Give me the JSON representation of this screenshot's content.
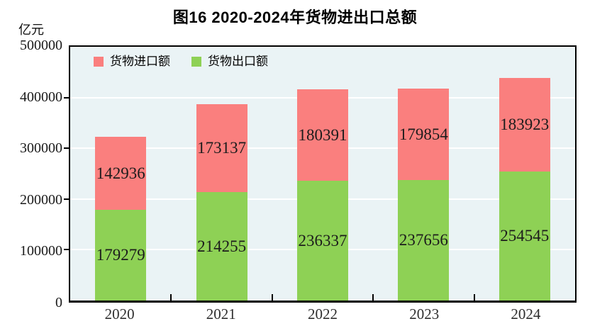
{
  "page": {
    "title": "图16  2020-2024年货物进出口总额",
    "unit_label": "亿元"
  },
  "legend": {
    "items": [
      {
        "label": "货物进口额",
        "color": "#fa7f7e"
      },
      {
        "label": "货物出口额",
        "color": "#8ed155"
      }
    ]
  },
  "chart_data": {
    "type": "bar",
    "stacked": true,
    "title": "图16  2020-2024年货物进出口总额",
    "ylabel": "亿元",
    "categories": [
      "2020",
      "2021",
      "2022",
      "2023",
      "2024"
    ],
    "series": [
      {
        "name": "货物进口额",
        "color": "#fa7f7e",
        "values": [
          142936,
          173137,
          180391,
          179854,
          183923
        ]
      },
      {
        "name": "货物出口额",
        "color": "#8ed155",
        "values": [
          179279,
          214255,
          236337,
          237656,
          254545
        ]
      }
    ],
    "stack_order_bottom_to_top": [
      1,
      0
    ],
    "ylim": [
      0,
      500000
    ],
    "yticks": [
      0,
      100000,
      200000,
      300000,
      400000,
      500000
    ],
    "grid": true,
    "grid_color": "#ffffff",
    "plot_background": "#eaf3f5",
    "axis_color": "#000000",
    "legend_position": "top-left"
  }
}
